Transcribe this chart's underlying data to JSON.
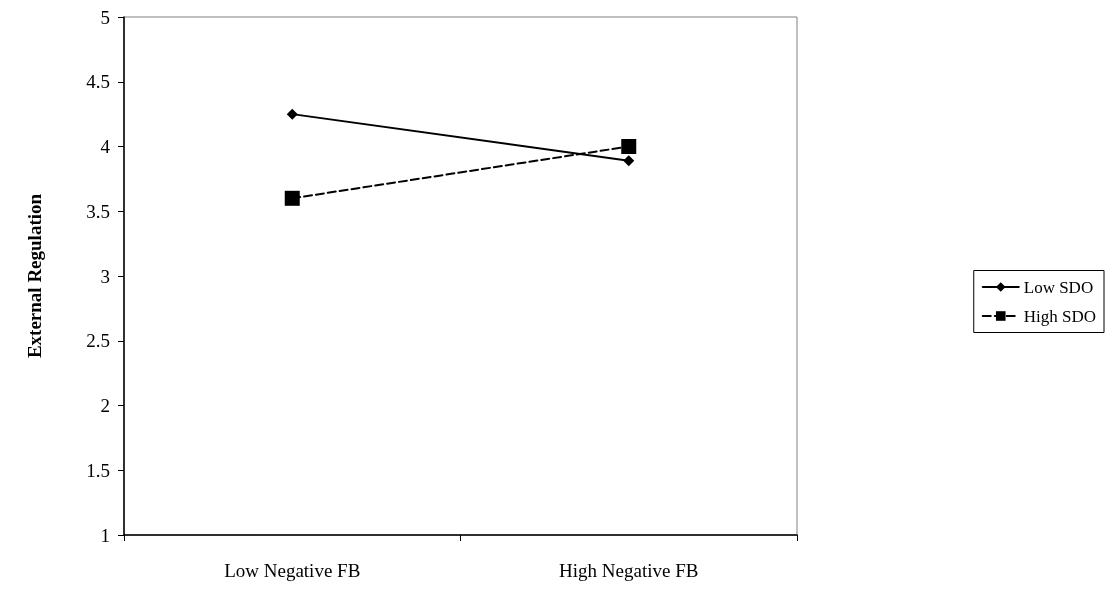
{
  "chart_data": {
    "type": "line",
    "ylabel": "External Regulation",
    "categories": [
      "Low Negative FB",
      "High Negative FB"
    ],
    "series": [
      {
        "name": "Low SDO",
        "color": "#000000",
        "values": [
          4.25,
          3.89
        ],
        "marker": "diamond",
        "line_style": "solid"
      },
      {
        "name": "High SDO",
        "color": "#000000",
        "values": [
          3.6,
          4.0
        ],
        "marker": "square",
        "line_style": "dashed"
      }
    ],
    "ylim": [
      1,
      5
    ],
    "yticks": [
      1,
      1.5,
      2,
      2.5,
      3,
      3.5,
      4,
      4.5,
      5
    ],
    "grid": false,
    "legend": "right"
  }
}
